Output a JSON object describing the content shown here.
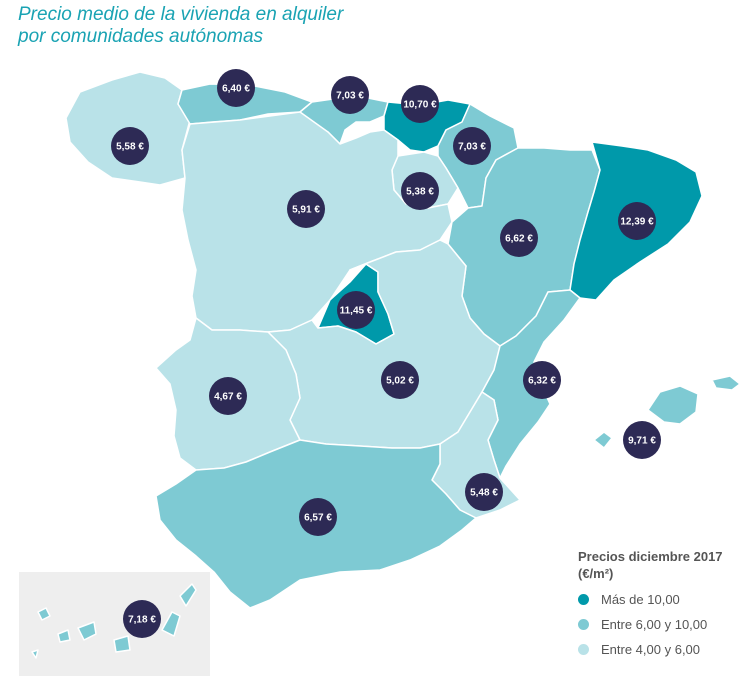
{
  "title": {
    "line1": "Precio medio de la vivienda en alquiler",
    "line2": "por comunidades autónomas"
  },
  "colors": {
    "high": "#0099aa",
    "mid": "#7ecad3",
    "low": "#b9e2e8",
    "marker": "#2d2a55",
    "border": "#ffffff",
    "inset_bg": "#eeeeee"
  },
  "regions": [
    {
      "name": "Galicia",
      "price": "5,58 €",
      "category": "low"
    },
    {
      "name": "Asturias",
      "price": "6,40 €",
      "category": "mid"
    },
    {
      "name": "Cantabria",
      "price": "7,03 €",
      "category": "mid"
    },
    {
      "name": "País Vasco",
      "price": "10,70 €",
      "category": "high"
    },
    {
      "name": "Navarra",
      "price": "7,03 €",
      "category": "mid"
    },
    {
      "name": "La Rioja",
      "price": "5,38 €",
      "category": "low"
    },
    {
      "name": "Castilla y León",
      "price": "5,91 €",
      "category": "low"
    },
    {
      "name": "Aragón",
      "price": "6,62 €",
      "category": "mid"
    },
    {
      "name": "Cataluña",
      "price": "12,39 €",
      "category": "high"
    },
    {
      "name": "Madrid",
      "price": "11,45 €",
      "category": "high"
    },
    {
      "name": "Castilla-La Mancha",
      "price": "5,02 €",
      "category": "low"
    },
    {
      "name": "Extremadura",
      "price": "4,67 €",
      "category": "low"
    },
    {
      "name": "Comunidad Valenciana",
      "price": "6,32 €",
      "category": "mid"
    },
    {
      "name": "Islas Baleares",
      "price": "9,71 €",
      "category": "mid"
    },
    {
      "name": "Murcia",
      "price": "5,48 €",
      "category": "low"
    },
    {
      "name": "Andalucía",
      "price": "6,57 €",
      "category": "mid"
    },
    {
      "name": "Canarias",
      "price": "7,18 €",
      "category": "mid"
    }
  ],
  "legend": {
    "title": "Precios diciembre 2017 (€/m²)",
    "items": [
      {
        "label": "Más de 10,00",
        "category": "high"
      },
      {
        "label": "Entre 6,00 y 10,00",
        "category": "mid"
      },
      {
        "label": "Entre 4,00 y 6,00",
        "category": "low"
      }
    ]
  }
}
